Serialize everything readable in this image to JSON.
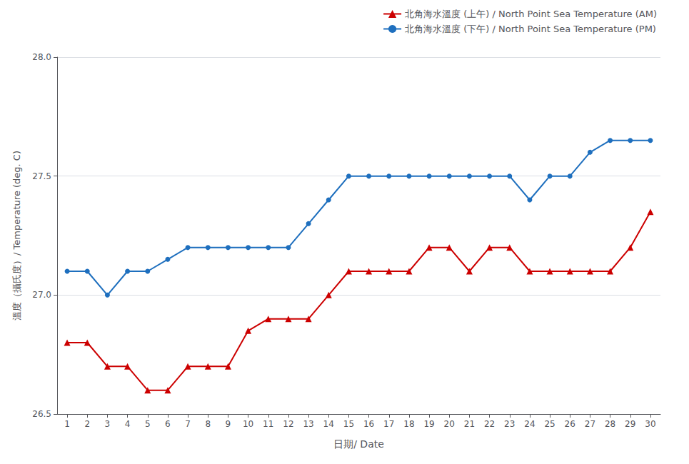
{
  "chart_data": {
    "type": "line",
    "x": [
      1,
      2,
      3,
      4,
      5,
      6,
      7,
      8,
      9,
      10,
      11,
      12,
      13,
      14,
      15,
      16,
      17,
      18,
      19,
      20,
      21,
      22,
      23,
      24,
      25,
      26,
      27,
      28,
      29,
      30
    ],
    "xlabel": "日期/ Date",
    "ylabel": "溫度（攝氏度）/ Temperature (deg. C)",
    "xlim": [
      0.5,
      30.5
    ],
    "xticks": [
      1,
      2,
      3,
      4,
      5,
      6,
      7,
      8,
      9,
      10,
      11,
      12,
      13,
      14,
      15,
      16,
      17,
      18,
      19,
      20,
      21,
      22,
      23,
      24,
      25,
      26,
      27,
      28,
      29,
      30
    ],
    "ylim": [
      26.5,
      28.0
    ],
    "yticks": [
      26.5,
      {
        "value": 27.0,
        "label": "27.0"
      },
      27.5,
      {
        "value": 28.0,
        "label": "28.0"
      }
    ],
    "grid": "y",
    "legend": "top",
    "series": [
      {
        "name": "北角海水溫度 (上午) / North Point Sea Temperature (AM)",
        "color": "#cc0000",
        "marker": "triangle",
        "values": [
          26.8,
          26.8,
          26.7,
          26.7,
          26.6,
          26.6,
          26.7,
          26.7,
          26.7,
          26.85,
          26.9,
          26.9,
          26.9,
          27.0,
          27.1,
          27.1,
          27.1,
          27.1,
          27.2,
          27.2,
          27.1,
          27.2,
          27.2,
          27.1,
          27.1,
          27.1,
          27.1,
          27.1,
          27.2,
          27.35
        ]
      },
      {
        "name": "北角海水溫度 (下午) / North Point Sea Temperature (PM)",
        "color": "#1e6fbe",
        "marker": "circle",
        "values": [
          27.1,
          27.1,
          27.0,
          27.1,
          27.1,
          27.15,
          27.2,
          27.2,
          27.2,
          27.2,
          27.2,
          27.2,
          27.3,
          27.4,
          27.5,
          27.5,
          27.5,
          27.5,
          27.5,
          27.5,
          27.5,
          27.5,
          27.5,
          27.4,
          27.5,
          27.5,
          27.6,
          27.65,
          27.65,
          27.65
        ]
      }
    ]
  }
}
